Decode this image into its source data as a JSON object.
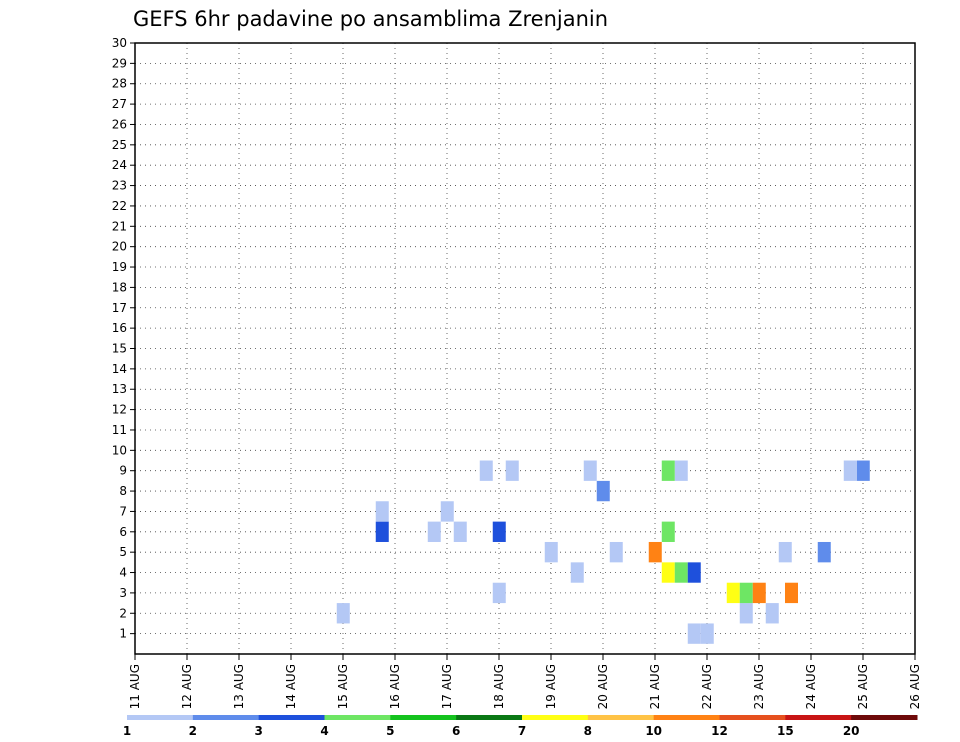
{
  "chart_data": {
    "type": "heatmap",
    "title": "GEFS 6hr padavine po ansamblima Zrenjanin",
    "xlabel": "",
    "ylabel": "",
    "x_ticks": [
      "11 AUG",
      "12 AUG",
      "13 AUG",
      "14 AUG",
      "15 AUG",
      "16 AUG",
      "17 AUG",
      "18 AUG",
      "19 AUG",
      "20 AUG",
      "21 AUG",
      "22 AUG",
      "23 AUG",
      "24 AUG",
      "25 AUG",
      "26 AUG"
    ],
    "y_ticks": [
      "1",
      "2",
      "3",
      "4",
      "5",
      "6",
      "7",
      "8",
      "9",
      "10",
      "11",
      "12",
      "13",
      "14",
      "15",
      "16",
      "17",
      "18",
      "19",
      "20",
      "21",
      "22",
      "23",
      "24",
      "25",
      "26",
      "27",
      "28",
      "29",
      "30"
    ],
    "time_step_hours": 6,
    "xlim_days": [
      11,
      26
    ],
    "ylim": [
      0,
      30
    ],
    "grid": true,
    "colorbar": {
      "placement": "bottom",
      "tick_labels": [
        "1",
        "2",
        "3",
        "4",
        "5",
        "6",
        "7",
        "8",
        "10",
        "12",
        "15",
        "20"
      ],
      "bounds": [
        1,
        2,
        3,
        4,
        5,
        6,
        7,
        8,
        10,
        12,
        15,
        20,
        30
      ],
      "colors": [
        "#b4c8f5",
        "#5f8ceb",
        "#1e50dc",
        "#6ee664",
        "#14c31e",
        "#0a7814",
        "#ffff14",
        "#ffc346",
        "#ff8214",
        "#e6501e",
        "#c81414",
        "#6e0a0a"
      ]
    },
    "values_format": "[day_of_august_start, member, precipitation_mm]",
    "values": [
      [
        21.63,
        1,
        1.5
      ],
      [
        21.88,
        1,
        1.5
      ],
      [
        22.63,
        2,
        1.5
      ],
      [
        23.13,
        2,
        1.5
      ],
      [
        23.5,
        3,
        11
      ],
      [
        22.38,
        3,
        7.5
      ],
      [
        22.63,
        3,
        4.5
      ],
      [
        22.88,
        3,
        11
      ],
      [
        14.88,
        2,
        1.5
      ],
      [
        17.88,
        3,
        1.5
      ],
      [
        19.38,
        4,
        1.5
      ],
      [
        21.13,
        4,
        7.5
      ],
      [
        21.38,
        4,
        4.5
      ],
      [
        21.63,
        4,
        3.5
      ],
      [
        18.88,
        5,
        1.5
      ],
      [
        20.13,
        5,
        1.5
      ],
      [
        20.88,
        5,
        11
      ],
      [
        23.38,
        5,
        1.5
      ],
      [
        24.13,
        5,
        2.5
      ],
      [
        15.63,
        6,
        3.5
      ],
      [
        17.13,
        6,
        1.5
      ],
      [
        21.13,
        6,
        4.5
      ],
      [
        16.63,
        6,
        1.5
      ],
      [
        17.88,
        6,
        3.5
      ],
      [
        15.63,
        7,
        1.5
      ],
      [
        16.88,
        7,
        1.5
      ],
      [
        19.88,
        8,
        2.5
      ],
      [
        17.63,
        9,
        1.5
      ],
      [
        18.13,
        9,
        1.5
      ],
      [
        19.63,
        9,
        1.5
      ],
      [
        24.88,
        9,
        2.5
      ],
      [
        24.63,
        9,
        1.5
      ],
      [
        21.38,
        9,
        1.5
      ],
      [
        21.13,
        9,
        4.5
      ]
    ]
  }
}
